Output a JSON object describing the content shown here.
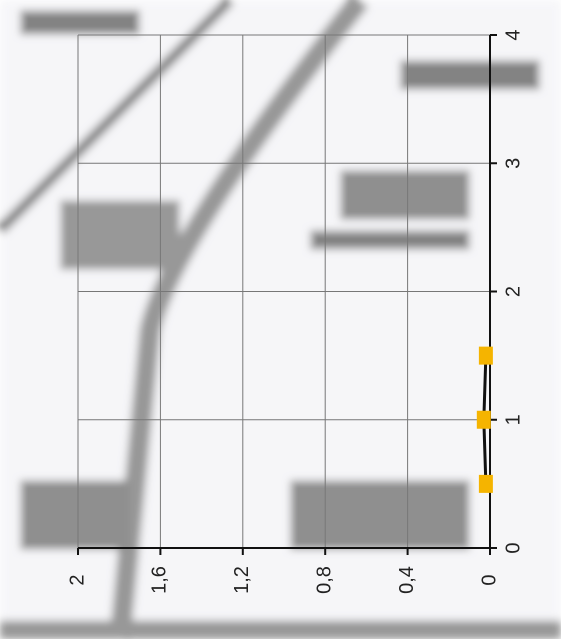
{
  "chart_data": {
    "type": "line",
    "x": [
      0.5,
      1,
      1.5
    ],
    "series": [
      {
        "color": "#f5b400",
        "values": [
          0.02,
          0.03,
          0.02
        ]
      }
    ],
    "xlim": [
      0,
      4
    ],
    "xticks": [
      0,
      1,
      2,
      3,
      4
    ],
    "ylim": [
      0,
      2
    ],
    "yticks": [
      0,
      {
        "value": 0.4,
        "label": "0,4"
      },
      {
        "value": 0.8,
        "label": "0,8"
      },
      {
        "value": 1.2,
        "label": "1,2"
      },
      {
        "value": 1.6,
        "label": "1,6"
      },
      2
    ],
    "grid": true
  }
}
